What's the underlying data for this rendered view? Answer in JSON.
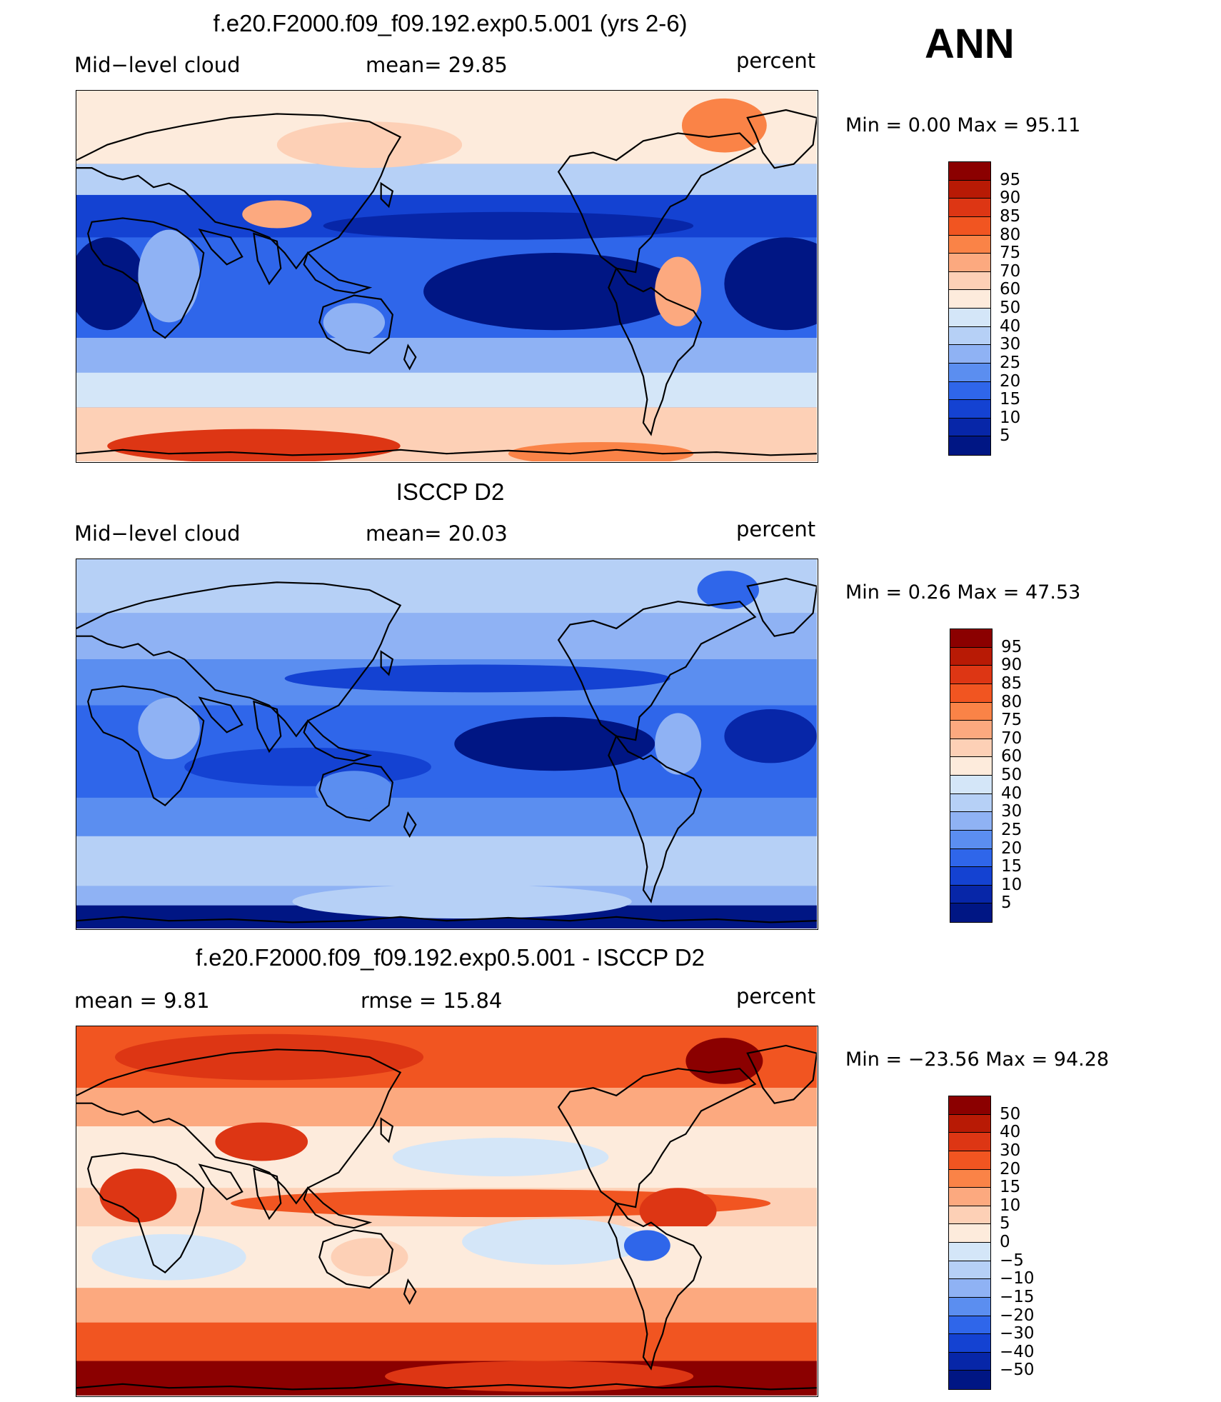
{
  "season": "ANN",
  "panels": [
    {
      "title": "f.e20.F2000.f09_f09.192.exp0.5.001 (yrs 2-6)",
      "left_label": "Mid−level  cloud",
      "center_label": "mean=   29.85",
      "units": "percent",
      "minmax": "Min  =     0.00  Max  =    95.11",
      "colorbar": {
        "labels": [
          "95",
          "90",
          "85",
          "80",
          "75",
          "70",
          "60",
          "50",
          "40",
          "30",
          "25",
          "20",
          "15",
          "10",
          "5"
        ],
        "colors": [
          "#8b0000",
          "#b81a05",
          "#dd3614",
          "#f15521",
          "#fa8347",
          "#fca97f",
          "#fdd0b6",
          "#fdebdc",
          "#d4e6f8",
          "#b6d0f6",
          "#8fb2f4",
          "#5b8ef0",
          "#2f66ea",
          "#1442d2",
          "#0726a8",
          "#001684"
        ]
      }
    },
    {
      "title": "ISCCP D2",
      "left_label": "Mid−level  cloud",
      "center_label": "mean=   20.03",
      "units": "percent",
      "minmax": "Min  =     0.26  Max  =    47.53",
      "colorbar": {
        "labels": [
          "95",
          "90",
          "85",
          "80",
          "75",
          "70",
          "60",
          "50",
          "40",
          "30",
          "25",
          "20",
          "15",
          "10",
          "5"
        ],
        "colors": [
          "#8b0000",
          "#b81a05",
          "#dd3614",
          "#f15521",
          "#fa8347",
          "#fca97f",
          "#fdd0b6",
          "#fdebdc",
          "#d4e6f8",
          "#b6d0f6",
          "#8fb2f4",
          "#5b8ef0",
          "#2f66ea",
          "#1442d2",
          "#0726a8",
          "#001684"
        ]
      }
    },
    {
      "title": "f.e20.F2000.f09_f09.192.exp0.5.001 - ISCCP D2",
      "left_label": "mean  =     9.81",
      "center_label": "rmse  =    15.84",
      "units": "percent",
      "minmax": "Min  = −23.56  Max  =    94.28",
      "colorbar": {
        "labels": [
          "50",
          "40",
          "30",
          "20",
          "15",
          "10",
          "5",
          "0",
          "−5",
          "−10",
          "−15",
          "−20",
          "−30",
          "−40",
          "−50"
        ],
        "colors": [
          "#8b0000",
          "#b81a05",
          "#dd3614",
          "#f15521",
          "#fa8347",
          "#fca97f",
          "#fdd0b6",
          "#fdebdc",
          "#d4e6f8",
          "#b6d0f6",
          "#8fb2f4",
          "#5b8ef0",
          "#2f66ea",
          "#1442d2",
          "#0726a8",
          "#001684"
        ]
      }
    }
  ]
}
